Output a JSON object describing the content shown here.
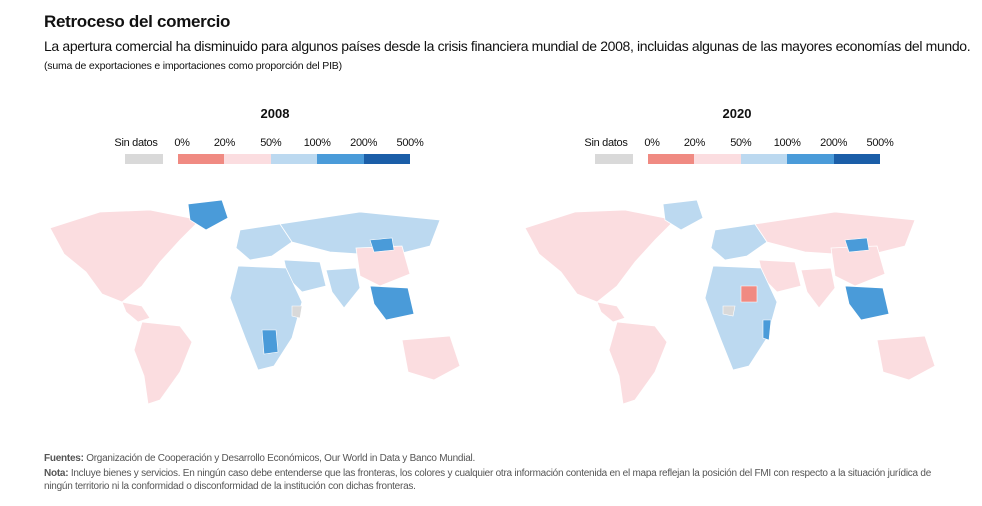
{
  "title": "Retroceso del comercio",
  "subtitle": "La apertura comercial ha disminuido para algunos países desde la crisis financiera mundial de 2008, incluidas algunas de las mayores economías del mundo.",
  "unit_note": "(suma de exportaciones e importaciones como proporción del PIB)",
  "legend": {
    "no_data_label": "Sin datos",
    "no_data_color": "#d9d9d9",
    "breaks": [
      "0%",
      "20%",
      "50%",
      "100%",
      "200%",
      "500%"
    ],
    "colors": [
      "#f08a82",
      "#fbdde0",
      "#bcd9f0",
      "#4a9bd9",
      "#1b5ea8"
    ]
  },
  "panels": [
    {
      "year": "2008"
    },
    {
      "year": "2020"
    }
  ],
  "footer": {
    "sources_label": "Fuentes:",
    "sources_text": " Organización de Cooperación y Desarrollo Económicos, Our World in Data y Banco Mundial.",
    "note_label": "Nota:",
    "note_text": " Incluye bienes y servicios. En ningún caso debe entenderse que las fronteras, los colores y cualquier otra información contenida en el mapa reflejan la posición del FMI con respecto a la situación jurídica de ningún territorio ni la conformidad o disconformidad de la institución con dichas fronteras."
  }
}
